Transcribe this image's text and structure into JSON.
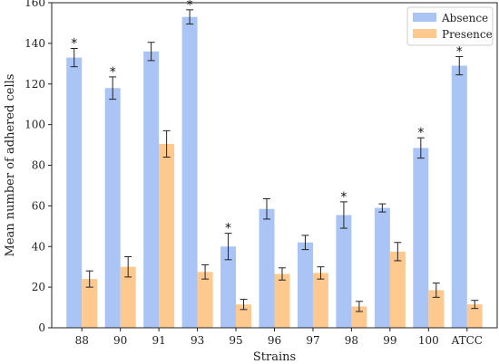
{
  "chart_data": {
    "type": "bar",
    "categories": [
      "88",
      "90",
      "91",
      "93",
      "95",
      "96",
      "97",
      "98",
      "99",
      "100",
      "ATCC"
    ],
    "series": [
      {
        "name": "Absence",
        "color": "#a9c4f5",
        "values": [
          133,
          118,
          136,
          153,
          40,
          58.5,
          42,
          55.5,
          59,
          88.5,
          129
        ],
        "errors": [
          4.5,
          5.5,
          4.5,
          3.5,
          6.5,
          5,
          3.5,
          6.5,
          2,
          5,
          4.5
        ]
      },
      {
        "name": "Presence",
        "color": "#fdc98e",
        "values": [
          24,
          30,
          90.5,
          27.5,
          11.5,
          26.5,
          27,
          10.5,
          37.5,
          18.5,
          11.5
        ],
        "errors": [
          4,
          5,
          6.5,
          3.5,
          2.5,
          3,
          3,
          2.5,
          4.5,
          3.5,
          2
        ]
      }
    ],
    "significance_marker": "*",
    "significant": [
      true,
      true,
      false,
      true,
      true,
      false,
      false,
      true,
      false,
      true,
      true
    ],
    "title": "",
    "xlabel": "Strains",
    "ylabel": "Mean number of adhered cells",
    "ylim": [
      0,
      160
    ],
    "yticks": [
      0,
      20,
      40,
      60,
      80,
      100,
      120,
      140,
      160
    ],
    "grid": false,
    "legend_position": "top-right"
  }
}
